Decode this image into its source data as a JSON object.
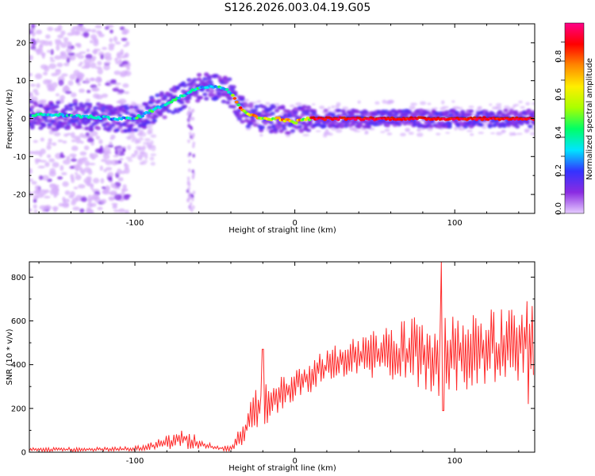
{
  "figure": {
    "title": "S126.2026.003.04.19.G05"
  },
  "chart_data": [
    {
      "type": "heatmap",
      "title": "",
      "xlabel": "Height of straight line (km)",
      "ylabel": "Frequency (Hz)",
      "xlim": [
        -166,
        150
      ],
      "ylim": [
        -25,
        25
      ],
      "xticks": [
        -100,
        0,
        100
      ],
      "yticks": [
        -20,
        -10,
        0,
        10,
        20
      ],
      "colorbar": {
        "label": "Normalized spectral amplitude",
        "ticks": [
          "0.0",
          "0.2",
          "0.4",
          "0.6",
          "0.8"
        ],
        "range": [
          0,
          1
        ],
        "colormap": [
          "#e6ccff",
          "#8a2be2",
          "#3333ff",
          "#00e5ff",
          "#00ff66",
          "#aaff00",
          "#ffee00",
          "#ff8800",
          "#ff0000",
          "#ff0088"
        ]
      },
      "ridge": {
        "x": [
          -166,
          -150,
          -130,
          -110,
          -100,
          -90,
          -80,
          -70,
          -62,
          -55,
          -48,
          -42,
          -38,
          -34,
          -30,
          -25,
          -20,
          -15,
          -10,
          -5,
          0,
          5,
          10,
          150
        ],
        "y": [
          1,
          1,
          0.5,
          0,
          0,
          2,
          4,
          6,
          8,
          8.5,
          8.5,
          7.5,
          5.5,
          3,
          1.5,
          0.5,
          0,
          0,
          0,
          -0.5,
          -1,
          -0.2,
          0,
          0
        ],
        "strong_from_x": 10
      },
      "grid": false,
      "legend": "none"
    },
    {
      "type": "line",
      "title": "",
      "xlabel": "Height of straight line (km)",
      "ylabel": "SNR (10 * v/v)",
      "xlim": [
        -166,
        150
      ],
      "ylim": [
        0,
        870
      ],
      "xticks": [
        -100,
        0,
        100
      ],
      "yticks": [
        0,
        200,
        400,
        600,
        800
      ],
      "color": "#ff2a2a",
      "envelope": {
        "x": [
          -166,
          -130,
          -110,
          -95,
          -85,
          -75,
          -68,
          -60,
          -50,
          -40,
          -35,
          -30,
          -25,
          -20,
          -15,
          -10,
          -5,
          0,
          10,
          20,
          30,
          40,
          50,
          60,
          70,
          80,
          90,
          100,
          110,
          120,
          130,
          140,
          150
        ],
        "mean": [
          12,
          12,
          14,
          20,
          35,
          55,
          60,
          40,
          20,
          15,
          60,
          120,
          180,
          210,
          240,
          260,
          280,
          300,
          350,
          390,
          420,
          440,
          450,
          455,
          460,
          455,
          450,
          450,
          460,
          470,
          480,
          490,
          500
        ],
        "spread": [
          10,
          10,
          10,
          12,
          25,
          40,
          45,
          30,
          12,
          15,
          45,
          80,
          110,
          100,
          90,
          80,
          80,
          80,
          80,
          80,
          90,
          100,
          110,
          120,
          150,
          170,
          200,
          200,
          190,
          180,
          180,
          180,
          170
        ]
      },
      "peaks": [
        {
          "x": -20,
          "y": 470
        },
        {
          "x": 92,
          "y": 870
        },
        {
          "x": 92.8,
          "y": 190
        },
        {
          "x": 145,
          "y": 690
        },
        {
          "x": 146,
          "y": 220
        }
      ],
      "grid": false,
      "legend": "none"
    }
  ]
}
